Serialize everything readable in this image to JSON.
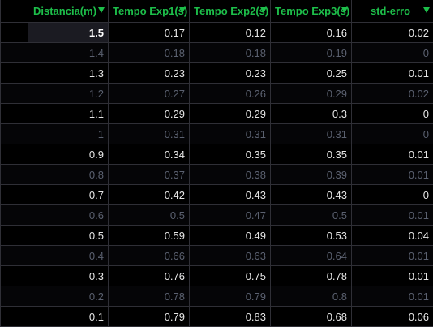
{
  "columns": [
    {
      "label": "Distancia(m)"
    },
    {
      "label": "Tempo Exp1(s)"
    },
    {
      "label": "Tempo Exp2(s)"
    },
    {
      "label": "Tempo Exp3(s)"
    },
    {
      "label": "std-erro"
    }
  ],
  "accent_color": "#1dbf4a",
  "rows": [
    [
      "1.5",
      "0.17",
      "0.12",
      "0.16",
      "0.02"
    ],
    [
      "1.4",
      "0.18",
      "0.18",
      "0.19",
      "0"
    ],
    [
      "1.3",
      "0.23",
      "0.23",
      "0.25",
      "0.01"
    ],
    [
      "1.2",
      "0.27",
      "0.26",
      "0.29",
      "0.02"
    ],
    [
      "1.1",
      "0.29",
      "0.29",
      "0.3",
      "0"
    ],
    [
      "1",
      "0.31",
      "0.31",
      "0.31",
      "0"
    ],
    [
      "0.9",
      "0.34",
      "0.35",
      "0.35",
      "0.01"
    ],
    [
      "0.8",
      "0.37",
      "0.38",
      "0.39",
      "0.01"
    ],
    [
      "0.7",
      "0.42",
      "0.43",
      "0.43",
      "0"
    ],
    [
      "0.6",
      "0.5",
      "0.47",
      "0.5",
      "0.01"
    ],
    [
      "0.5",
      "0.59",
      "0.49",
      "0.53",
      "0.04"
    ],
    [
      "0.4",
      "0.66",
      "0.63",
      "0.64",
      "0.01"
    ],
    [
      "0.3",
      "0.76",
      "0.75",
      "0.78",
      "0.01"
    ],
    [
      "0.2",
      "0.78",
      "0.79",
      "0.8",
      "0.01"
    ],
    [
      "0.1",
      "0.79",
      "0.83",
      "0.68",
      "0.06"
    ]
  ]
}
